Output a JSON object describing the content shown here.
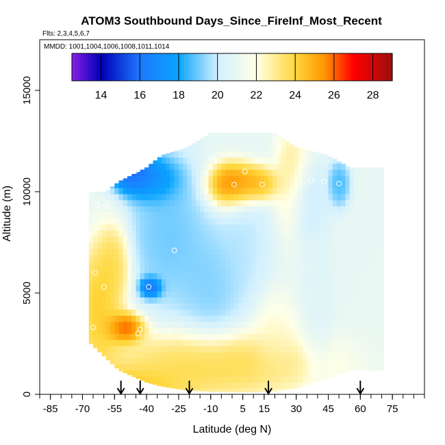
{
  "chart_data": {
    "type": "heatmap",
    "title": "ATOM3 Southbound Days_Since_FireInf_Most_Recent",
    "flights_note": "Flts: 2,3,4,5,6,7",
    "dates_note": "MMDD: 1001,1004,1006,1008,1011,1014",
    "xlabel": "Latitude (deg N)",
    "ylabel": "Altitude (m)",
    "xlim": [
      -90,
      90
    ],
    "ylim": [
      0,
      17500
    ],
    "x_ticks": [
      -85,
      -70,
      -55,
      -40,
      -25,
      -10,
      5,
      15,
      30,
      45,
      60,
      75
    ],
    "x_minor_step": 5,
    "y_ticks": [
      0,
      5000,
      10000,
      15000
    ],
    "grid": false,
    "colorbar": {
      "min": 12.5,
      "max": 29,
      "ticks": [
        14,
        16,
        18,
        20,
        22,
        24,
        26,
        28
      ],
      "colors": [
        "#8a1fe8",
        "#0000b4",
        "#1e78ff",
        "#0aa5ff",
        "#d2f0ff",
        "#ffffe6",
        "#ffd73c",
        "#ff9600",
        "#ff0000",
        "#9b0f0f"
      ],
      "stops": [
        12.5,
        14,
        16,
        18,
        20,
        22,
        24,
        25.5,
        27,
        29
      ]
    },
    "value_range_default": 21,
    "domain_outline_lat": [
      -67,
      -59,
      -53,
      -40,
      -33,
      -21,
      -10,
      2,
      13,
      20,
      30,
      45,
      55,
      68,
      71
    ],
    "domain_top_alt": [
      10000,
      10000,
      10500,
      11200,
      11800,
      12200,
      12900,
      12900,
      12900,
      12900,
      12200,
      11800,
      11200,
      11200,
      11200
    ],
    "domain_bottom_alt": [
      2600,
      1800,
      1200,
      600,
      400,
      200,
      150,
      120,
      120,
      150,
      300,
      800,
      1200,
      1200,
      1200
    ],
    "anomalies": [
      {
        "lat": -46,
        "alt": 11000,
        "rx": 8,
        "ry": 800,
        "value": 14
      },
      {
        "lat": -37,
        "alt": 10600,
        "rx": 10,
        "ry": 900,
        "value": 16
      },
      {
        "lat": 0,
        "alt": 10300,
        "rx": 9,
        "ry": 900,
        "value": 27.5
      },
      {
        "lat": 10,
        "alt": 10400,
        "rx": 9,
        "ry": 700,
        "value": 26
      },
      {
        "lat": -38,
        "alt": 5300,
        "rx": 4,
        "ry": 400,
        "value": 14
      },
      {
        "lat": -50,
        "alt": 3300,
        "rx": 7,
        "ry": 600,
        "value": 27.5
      },
      {
        "lat": -62,
        "alt": 4200,
        "rx": 8,
        "ry": 2500,
        "value": 25
      },
      {
        "lat": -55,
        "alt": 6500,
        "rx": 6,
        "ry": 1500,
        "value": 24.5
      },
      {
        "lat": -30,
        "alt": 8000,
        "rx": 15,
        "ry": 3000,
        "value": 18.5
      },
      {
        "lat": -10,
        "alt": 5500,
        "rx": 12,
        "ry": 2200,
        "value": 18.8
      },
      {
        "lat": 5,
        "alt": 7500,
        "rx": 10,
        "ry": 2500,
        "value": 19.5
      },
      {
        "lat": 28,
        "alt": 10600,
        "rx": 6,
        "ry": 2000,
        "value": 23.5
      },
      {
        "lat": 50,
        "alt": 10400,
        "rx": 4,
        "ry": 900,
        "value": 18
      },
      {
        "lat": 35,
        "alt": 9500,
        "rx": 8,
        "ry": 1500,
        "value": 19.5
      },
      {
        "lat": -10,
        "alt": 1500,
        "rx": 40,
        "ry": 1300,
        "value": 24.5
      },
      {
        "lat": -55,
        "alt": 300,
        "rx": 25,
        "ry": 800,
        "value": 25.5
      },
      {
        "lat": 20,
        "alt": 3000,
        "rx": 8,
        "ry": 1500,
        "value": 22.5
      },
      {
        "lat": 40,
        "alt": 5000,
        "rx": 6,
        "ry": 3000,
        "value": 20.5
      }
    ],
    "sample_points": [
      {
        "lat": -67,
        "alt": 10000
      },
      {
        "lat": -63,
        "alt": 9350
      },
      {
        "lat": -59,
        "alt": 9300
      },
      {
        "lat": -45,
        "alt": 11050
      },
      {
        "lat": -9,
        "alt": 11650
      },
      {
        "lat": 6,
        "alt": 11000
      },
      {
        "lat": 20,
        "alt": 12550
      },
      {
        "lat": 1,
        "alt": 10350
      },
      {
        "lat": 14,
        "alt": 10350
      },
      {
        "lat": 37,
        "alt": 10550
      },
      {
        "lat": 43,
        "alt": 10500
      },
      {
        "lat": 50,
        "alt": 10400
      },
      {
        "lat": -27,
        "alt": 7100
      },
      {
        "lat": -64,
        "alt": 6000
      },
      {
        "lat": -60,
        "alt": 5300
      },
      {
        "lat": -39,
        "alt": 5300
      },
      {
        "lat": -65,
        "alt": 3300
      },
      {
        "lat": -43,
        "alt": 3200
      },
      {
        "lat": -44,
        "alt": 3000
      },
      {
        "lat": -30,
        "alt": 3100
      },
      {
        "lat": -56,
        "alt": 350
      }
    ],
    "arrows_lat": [
      -52,
      -43,
      -20,
      17,
      60
    ]
  }
}
